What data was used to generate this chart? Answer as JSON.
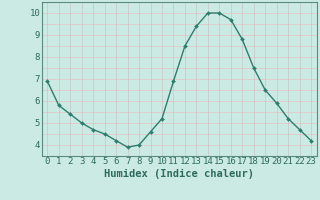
{
  "x": [
    0,
    1,
    2,
    3,
    4,
    5,
    6,
    7,
    8,
    9,
    10,
    11,
    12,
    13,
    14,
    15,
    16,
    17,
    18,
    19,
    20,
    21,
    22,
    23
  ],
  "y": [
    6.9,
    5.8,
    5.4,
    5.0,
    4.7,
    4.5,
    4.2,
    3.9,
    4.0,
    4.6,
    5.2,
    6.9,
    8.5,
    9.4,
    10.0,
    10.0,
    9.7,
    8.8,
    7.5,
    6.5,
    5.9,
    5.2,
    4.7,
    4.2
  ],
  "line_color": "#2e7d6e",
  "marker": "D",
  "marker_size": 2.0,
  "bg_color": "#cceae4",
  "grid_color_v": "#c0c0c0",
  "grid_color_h": "#e8b8b8",
  "xlabel": "Humidex (Indice chaleur)",
  "xlim": [
    -0.5,
    23.5
  ],
  "ylim": [
    3.5,
    10.5
  ],
  "yticks": [
    4,
    5,
    6,
    7,
    8,
    9,
    10
  ],
  "xticks": [
    0,
    1,
    2,
    3,
    4,
    5,
    6,
    7,
    8,
    9,
    10,
    11,
    12,
    13,
    14,
    15,
    16,
    17,
    18,
    19,
    20,
    21,
    22,
    23
  ],
  "tick_fontsize": 6.5,
  "xlabel_fontsize": 7.5,
  "text_color": "#2e6b5e",
  "spine_color": "#5a8a80",
  "linewidth": 1.0
}
